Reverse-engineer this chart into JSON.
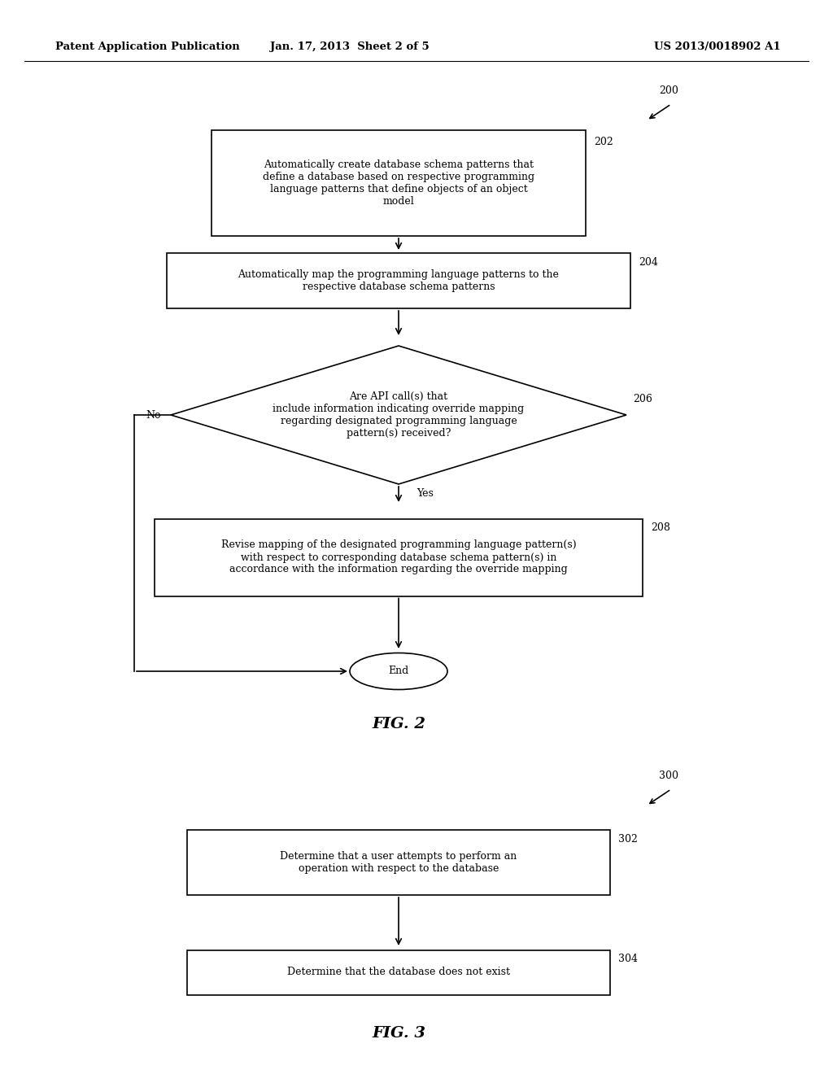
{
  "bg_color": "#ffffff",
  "header_left": "Patent Application Publication",
  "header_mid": "Jan. 17, 2013  Sheet 2 of 5",
  "header_right": "US 2013/0018902 A1",
  "fig2_label": "FIG. 2",
  "fig3_label": "FIG. 3",
  "fig2_ref": "200",
  "fig3_ref": "300",
  "box202_text": "Automatically create database schema patterns that\ndefine a database based on respective programming\nlanguage patterns that define objects of an object\nmodel",
  "box202_ref": "202",
  "box204_text": "Automatically map the programming language patterns to the\nrespective database schema patterns",
  "box204_ref": "204",
  "diamond206_text": "Are API call(s) that\ninclude information indicating override mapping\nregarding designated programming language\npattern(s) received?",
  "diamond206_ref": "206",
  "diamond206_no": "No",
  "diamond206_yes": "Yes",
  "box208_text": "Revise mapping of the designated programming language pattern(s)\nwith respect to corresponding database schema pattern(s) in\naccordance with the information regarding the override mapping",
  "box208_ref": "208",
  "end_text": "End",
  "box302_text": "Determine that a user attempts to perform an\noperation with respect to the database",
  "box302_ref": "302",
  "box304_text": "Determine that the database does not exist",
  "box304_ref": "304",
  "text_color": "#000000",
  "line_color": "#000000",
  "box_fill": "#ffffff",
  "font_family": "DejaVu Serif"
}
